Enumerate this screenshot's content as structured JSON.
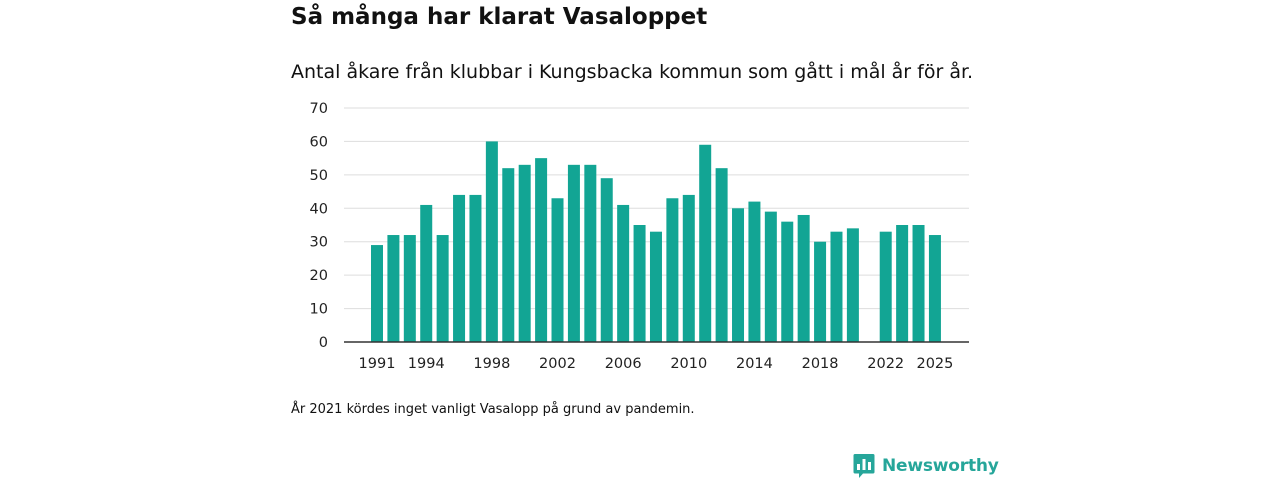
{
  "title": "Så många har klarat Vasaloppet",
  "subtitle": "Antal åkare från klubbar i Kungsbacka kommun som gått i mål år för år.",
  "note": "År 2021 kördes inget vanligt Vasalopp på grund av pandemin.",
  "brand": {
    "name": "Newsworthy",
    "logo_icon": "newsworthy-chart-icon",
    "color": "#26a69a"
  },
  "colors": {
    "bar": "#12a594",
    "grid": "#dddddd",
    "axis": "#333333"
  },
  "chart_data": {
    "type": "bar",
    "title": "Så många har klarat Vasaloppet",
    "xlabel": "",
    "ylabel": "",
    "ylim": [
      0,
      70
    ],
    "yticks": [
      0,
      10,
      20,
      30,
      40,
      50,
      60,
      70
    ],
    "xtick_labels": [
      "1991",
      "1994",
      "1998",
      "2002",
      "2006",
      "2010",
      "2014",
      "2018",
      "2022",
      "2025"
    ],
    "categories": [
      1991,
      1992,
      1993,
      1994,
      1995,
      1996,
      1997,
      1998,
      1999,
      2000,
      2001,
      2002,
      2003,
      2004,
      2005,
      2006,
      2007,
      2008,
      2009,
      2010,
      2011,
      2012,
      2013,
      2014,
      2015,
      2016,
      2017,
      2018,
      2019,
      2020,
      2021,
      2022,
      2023,
      2024,
      2025
    ],
    "values": [
      29,
      32,
      32,
      41,
      32,
      44,
      44,
      60,
      52,
      53,
      55,
      43,
      53,
      53,
      49,
      41,
      35,
      33,
      43,
      44,
      59,
      52,
      40,
      42,
      39,
      36,
      38,
      30,
      33,
      34,
      null,
      33,
      35,
      35,
      32
    ],
    "grid": true
  }
}
